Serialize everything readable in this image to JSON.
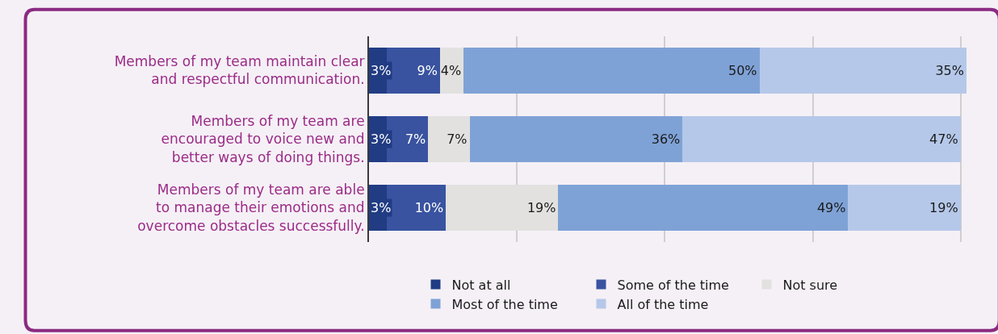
{
  "chart_data": {
    "type": "bar",
    "orientation": "horizontal",
    "stacked": true,
    "categories": [
      "Members of my team maintain clear\nand respectful communication.",
      "Members of my team are\nencouraged to voice new and\nbetter ways of doing things.",
      "Members of my team are able\nto manage their emotions and\novercome obstacles successfully."
    ],
    "series": [
      {
        "name": "Not at all",
        "color": "#213c83",
        "values": [
          3,
          3,
          3
        ],
        "value_labels": [
          "3%",
          "3%",
          "3%"
        ]
      },
      {
        "name": "Some of the time",
        "color": "#3953a0",
        "values": [
          9,
          7,
          10
        ],
        "value_labels": [
          "9%",
          "7%",
          "10%"
        ]
      },
      {
        "name": "Not sure",
        "color": "#e2e1e0",
        "values": [
          4,
          7,
          19
        ],
        "value_labels": [
          "4%",
          "7%",
          "19%"
        ]
      },
      {
        "name": "Most of the time",
        "color": "#7fa2d6",
        "values": [
          50,
          36,
          49
        ],
        "value_labels": [
          "50%",
          "36%",
          "49%"
        ]
      },
      {
        "name": "All of the time",
        "color": "#b5c8e9",
        "values": [
          35,
          47,
          19
        ],
        "value_labels": [
          "35%",
          "47%",
          "19%"
        ]
      }
    ],
    "xlim": [
      0,
      101
    ],
    "xticks": [
      {
        "value": 0,
        "label": null
      },
      {
        "value": 25,
        "label": null
      },
      {
        "value": 50,
        "label": null
      },
      {
        "value": 75,
        "label": null
      },
      {
        "value": 100,
        "label": null
      }
    ],
    "grid": "x",
    "legend": "bottom",
    "tick_labels": "y"
  }
}
